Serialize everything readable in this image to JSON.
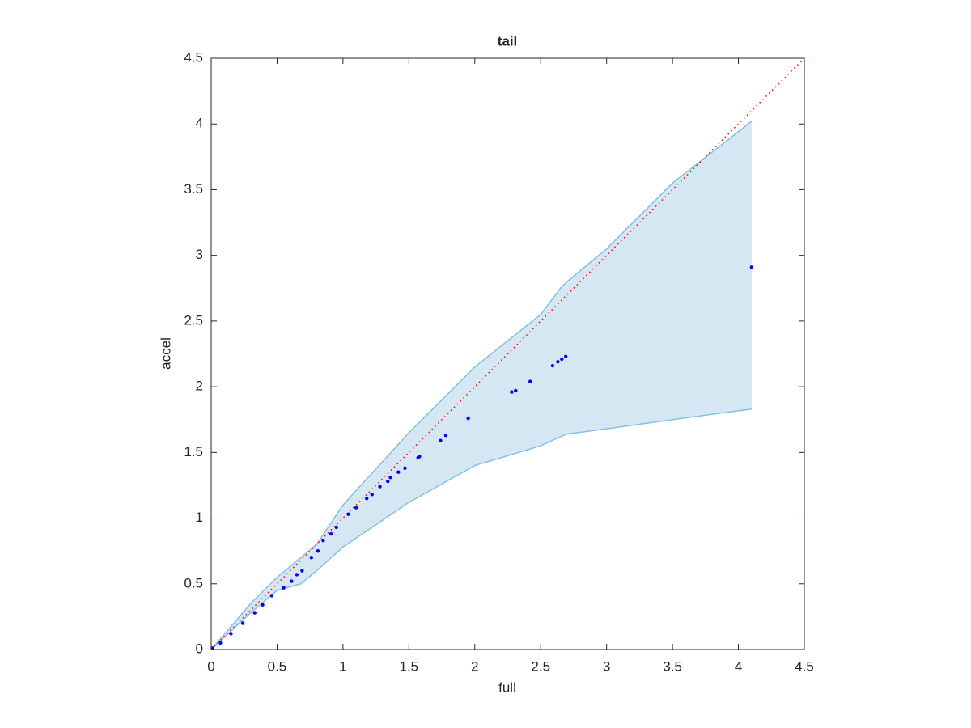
{
  "chart_data": {
    "type": "scatter",
    "title": "tail",
    "x_label": "full",
    "y_label": "accel",
    "xlim": [
      0,
      4.5
    ],
    "ylim": [
      0,
      4.5
    ],
    "xticks": [
      0,
      0.5,
      1,
      1.5,
      2,
      2.5,
      3,
      3.5,
      4,
      4.5
    ],
    "yticks": [
      0,
      0.5,
      1,
      1.5,
      2,
      2.5,
      3,
      3.5,
      4,
      4.5
    ],
    "color": "#0000ff",
    "x": [
      0.01,
      0.07,
      0.15,
      0.24,
      0.33,
      0.39,
      0.46,
      0.55,
      0.61,
      0.65,
      0.69,
      0.76,
      0.81,
      0.85,
      0.91,
      0.95,
      1.04,
      1.1,
      1.18,
      1.22,
      1.28,
      1.34,
      1.36,
      1.42,
      1.47,
      1.57,
      1.58,
      1.74,
      1.78,
      1.95,
      2.28,
      2.31,
      2.42,
      2.59,
      2.63,
      2.66,
      2.69,
      4.1
    ],
    "y": [
      0.01,
      0.05,
      0.12,
      0.2,
      0.28,
      0.34,
      0.41,
      0.47,
      0.52,
      0.57,
      0.6,
      0.7,
      0.75,
      0.83,
      0.88,
      0.93,
      1.03,
      1.08,
      1.15,
      1.18,
      1.24,
      1.28,
      1.31,
      1.35,
      1.38,
      1.46,
      1.47,
      1.59,
      1.63,
      1.76,
      1.96,
      1.97,
      2.04,
      2.16,
      2.19,
      2.21,
      2.23,
      2.91
    ],
    "band": {
      "color": "#d6e7f4",
      "edge_color": "#86bfe0",
      "x": [
        0,
        0.3,
        0.5,
        0.68,
        0.8,
        1.0,
        1.5,
        2.0,
        2.5,
        2.65,
        2.7,
        3.0,
        3.5,
        4.1
      ],
      "upper": [
        0,
        0.35,
        0.55,
        0.7,
        0.8,
        1.1,
        1.65,
        2.15,
        2.55,
        2.75,
        2.8,
        3.05,
        3.55,
        4.02
      ],
      "lower": [
        0,
        0.28,
        0.45,
        0.5,
        0.6,
        0.78,
        1.12,
        1.4,
        1.55,
        1.62,
        1.64,
        1.68,
        1.75,
        1.83
      ]
    },
    "reference": {
      "color": "#ff0000",
      "x": [
        0,
        4.5
      ],
      "y": [
        0,
        4.5
      ]
    }
  }
}
